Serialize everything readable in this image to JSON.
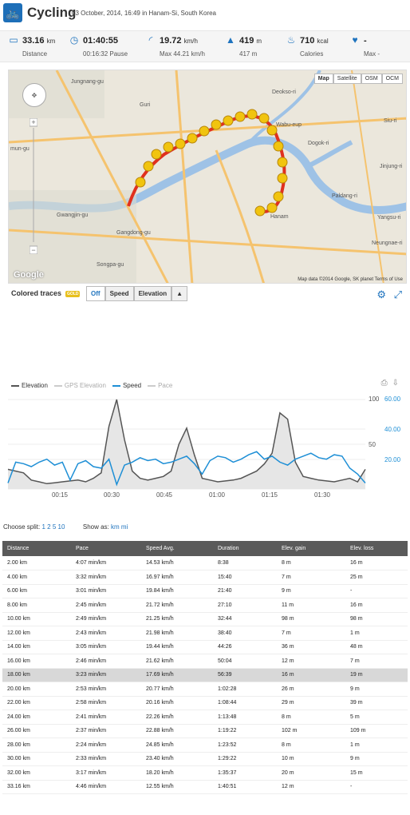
{
  "header": {
    "title": "Cycling",
    "subtitle": "03 October, 2014, 16:49 in Hanam-Si, South Korea"
  },
  "stats": [
    {
      "icon": "ruler-icon",
      "value": "33.16",
      "unit": "km",
      "label": "Distance"
    },
    {
      "icon": "clock-icon",
      "value": "01:40:55",
      "unit": "",
      "label": "00:16:32 Pause"
    },
    {
      "icon": "speed-icon",
      "value": "19.72",
      "unit": "km/h",
      "label": "Max 44.21 km/h"
    },
    {
      "icon": "mountain-icon",
      "value": "419",
      "unit": "m",
      "label": "417 m"
    },
    {
      "icon": "flame-icon",
      "value": "710",
      "unit": "kcal",
      "label": "Calories"
    },
    {
      "icon": "heart-icon",
      "value": "-",
      "unit": "",
      "label": "Max -"
    }
  ],
  "map": {
    "types": [
      "Map",
      "Satellite",
      "OSM",
      "OCM"
    ],
    "active_type": "Map",
    "attribution": "Map data ©2014 Google, SK planet   Terms of Use",
    "google_logo": "Google",
    "place_labels": [
      "Jungnang-gu",
      "Guri",
      "Gwangjin-gu",
      "Gangdong-gu",
      "Songpa-gu",
      "Deokso-ri",
      "Wabu-eup",
      "Dogok-ri",
      "Paldang-ri",
      "Jinjung-ri",
      "Siu-ri",
      "Neungnae-ri",
      "Yangsu-ri",
      "mun-gu",
      "Hanam"
    ]
  },
  "traces": {
    "label": "Colored traces",
    "badge": "GOLD",
    "buttons": [
      "Off",
      "Speed",
      "Elevation",
      "▲"
    ],
    "active": "Off"
  },
  "chart_data": {
    "type": "line",
    "series": [
      {
        "name": "Elevation",
        "color": "#555555"
      },
      {
        "name": "GPS Elevation",
        "color": "#cccccc"
      },
      {
        "name": "Speed",
        "color": "#1e8fd6"
      },
      {
        "name": "Pace",
        "color": "#cccccc"
      }
    ],
    "x_ticks": [
      "00:15",
      "00:30",
      "00:45",
      "01:00",
      "01:15",
      "01:30"
    ],
    "left_ticks": [
      "100",
      "50"
    ],
    "right_ticks": [
      "60.00",
      "40.00",
      "20.00"
    ],
    "elevation": [
      22,
      20,
      18,
      10,
      8,
      6,
      7,
      8,
      9,
      10,
      8,
      12,
      18,
      70,
      100,
      55,
      20,
      12,
      10,
      12,
      14,
      20,
      50,
      68,
      38,
      12,
      10,
      8,
      9,
      10,
      12,
      16,
      20,
      28,
      40,
      85,
      78,
      30,
      14,
      12,
      10,
      9,
      8,
      10,
      12,
      8,
      22
    ],
    "speed": [
      4,
      18,
      17,
      15,
      18,
      20,
      16,
      18,
      6,
      17,
      19,
      15,
      14,
      20,
      3,
      16,
      18,
      21,
      19,
      20,
      17,
      18,
      20,
      22,
      17,
      10,
      19,
      22,
      21,
      18,
      20,
      23,
      25,
      20,
      22,
      18,
      16,
      20,
      22,
      24,
      21,
      20,
      23,
      22,
      14,
      10,
      4
    ]
  },
  "split": {
    "label": "Choose split:",
    "options": "1 2 5 10",
    "show_label": "Show as:",
    "show_options": "km mi"
  },
  "table": {
    "headers": [
      "Distance",
      "Pace",
      "Speed Avg.",
      "Duration",
      "Elev. gain",
      "Elev. loss"
    ],
    "highlight_index": 8,
    "rows": [
      [
        "2.00 km",
        "4:07 min/km",
        "14.53 km/h",
        "8:38",
        "8 m",
        "16 m"
      ],
      [
        "4.00 km",
        "3:32 min/km",
        "16.97 km/h",
        "15:40",
        "7 m",
        "25 m"
      ],
      [
        "6.00 km",
        "3:01 min/km",
        "19.84 km/h",
        "21:40",
        "9 m",
        "-"
      ],
      [
        "8.00 km",
        "2:45 min/km",
        "21.72 km/h",
        "27:10",
        "11 m",
        "16 m"
      ],
      [
        "10.00 km",
        "2:49 min/km",
        "21.25 km/h",
        "32:44",
        "98 m",
        "98 m"
      ],
      [
        "12.00 km",
        "2:43 min/km",
        "21.98 km/h",
        "38:40",
        "7 m",
        "1 m"
      ],
      [
        "14.00 km",
        "3:05 min/km",
        "19.44 km/h",
        "44:26",
        "36 m",
        "48 m"
      ],
      [
        "16.00 km",
        "2:46 min/km",
        "21.62 km/h",
        "50:04",
        "12 m",
        "7 m"
      ],
      [
        "18.00 km",
        "3:23 min/km",
        "17.69 km/h",
        "56:39",
        "16 m",
        "19 m"
      ],
      [
        "20.00 km",
        "2:53 min/km",
        "20.77 km/h",
        "1:02:28",
        "26 m",
        "9 m"
      ],
      [
        "22.00 km",
        "2:58 min/km",
        "20.16 km/h",
        "1:08:44",
        "29 m",
        "39 m"
      ],
      [
        "24.00 km",
        "2:41 min/km",
        "22.26 km/h",
        "1:13:48",
        "8 m",
        "5 m"
      ],
      [
        "26.00 km",
        "2:37 min/km",
        "22.88 km/h",
        "1:19:22",
        "102 m",
        "109 m"
      ],
      [
        "28.00 km",
        "2:24 min/km",
        "24.85 km/h",
        "1:23:52",
        "8 m",
        "1 m"
      ],
      [
        "30.00 km",
        "2:33 min/km",
        "23.40 km/h",
        "1:29:22",
        "10 m",
        "9 m"
      ],
      [
        "32.00 km",
        "3:17 min/km",
        "18.20 km/h",
        "1:35:37",
        "20 m",
        "15 m"
      ],
      [
        "33.16 km",
        "4:46 min/km",
        "12.55 km/h",
        "1:40:51",
        "12 m",
        "-"
      ]
    ]
  }
}
